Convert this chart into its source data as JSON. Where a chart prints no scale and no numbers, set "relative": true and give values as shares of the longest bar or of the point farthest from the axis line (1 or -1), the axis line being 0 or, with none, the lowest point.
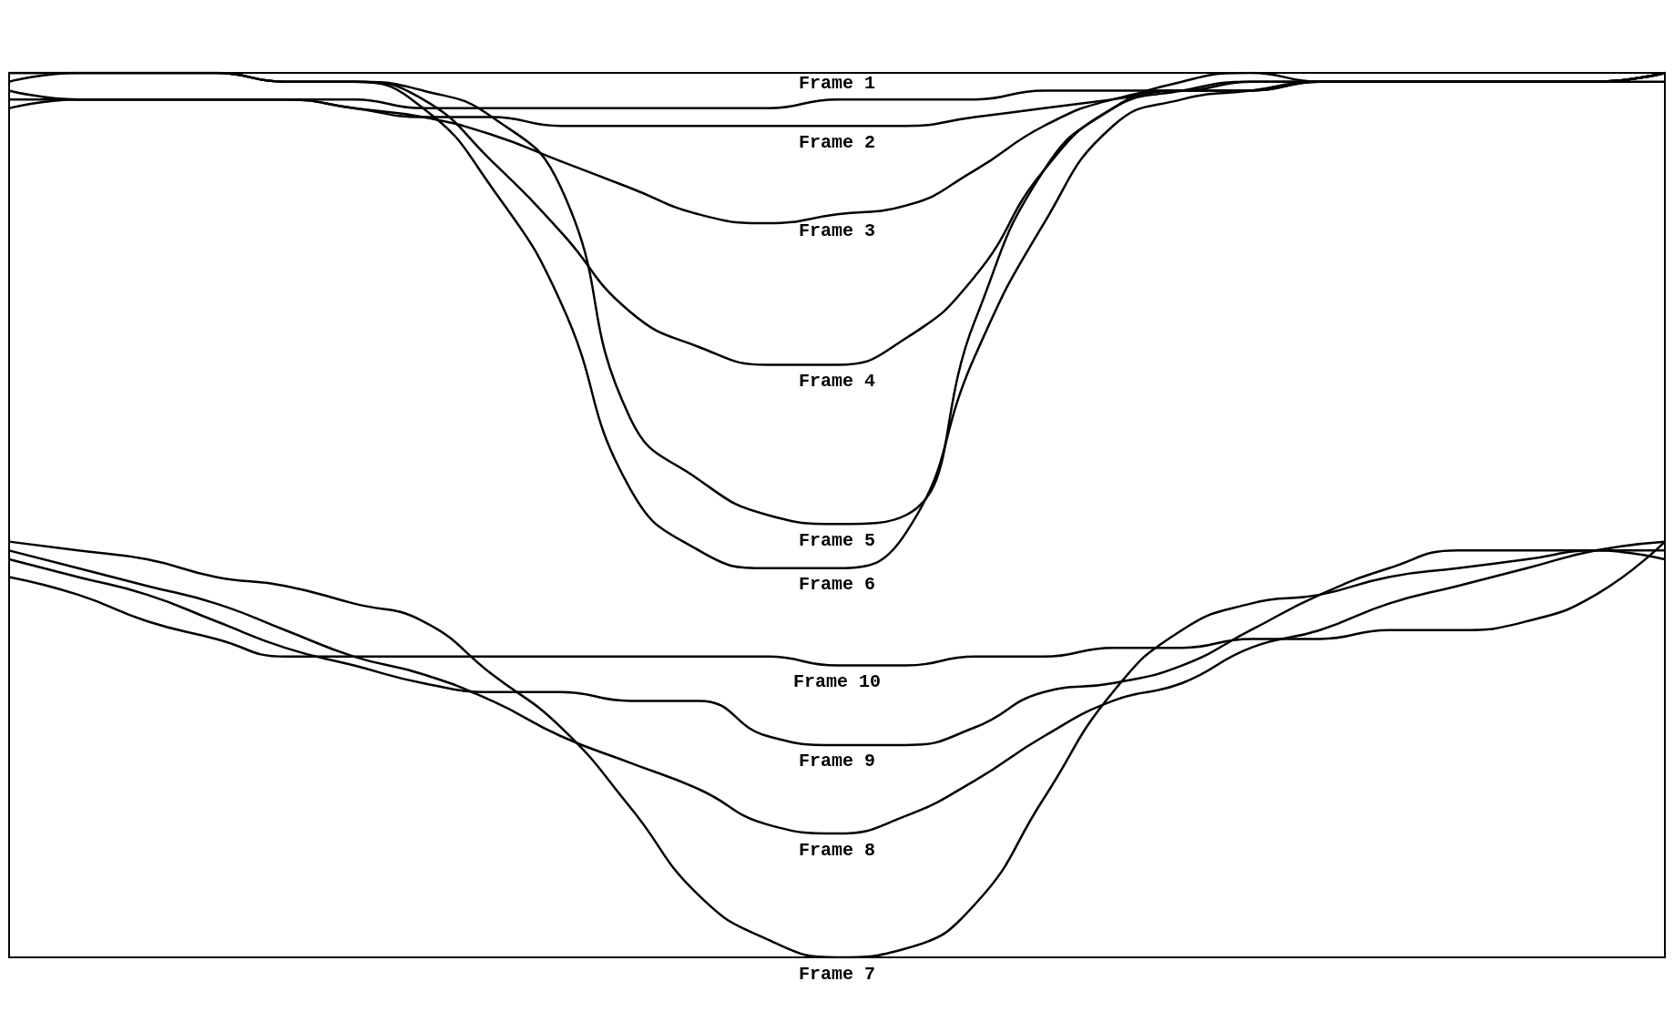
{
  "chart_data": {
    "type": "line",
    "relative": true,
    "categories": [
      null,
      null,
      null,
      null,
      null,
      null,
      null,
      null,
      null,
      null,
      null,
      null,
      null,
      null,
      null,
      null,
      null,
      null,
      null,
      null,
      null,
      null,
      null,
      null,
      null
    ],
    "series": [
      {
        "name": "Frame 1",
        "color": "#000000",
        "values": [
          0.98,
          0.97,
          0.97,
          0.97,
          0.97,
          0.97,
          0.96,
          0.96,
          0.96,
          0.96,
          0.96,
          0.96,
          0.97,
          0.97,
          0.97,
          0.98,
          0.98,
          0.98,
          0.99,
          0.99,
          0.99,
          0.99,
          0.99,
          0.99,
          1.0
        ]
      },
      {
        "name": "Frame 2",
        "color": "#000000",
        "values": [
          0.97,
          0.97,
          0.97,
          0.97,
          0.97,
          0.96,
          0.95,
          0.95,
          0.94,
          0.94,
          0.94,
          0.94,
          0.94,
          0.94,
          0.95,
          0.96,
          0.97,
          0.98,
          0.98,
          0.99,
          0.99,
          0.99,
          0.99,
          0.99,
          1.0
        ]
      },
      {
        "name": "Frame 3",
        "color": "#000000",
        "values": [
          0.96,
          0.97,
          0.97,
          0.97,
          0.97,
          0.96,
          0.95,
          0.93,
          0.9,
          0.87,
          0.84,
          0.83,
          0.84,
          0.85,
          0.89,
          0.94,
          0.97,
          0.98,
          0.98,
          0.99,
          0.99,
          0.99,
          0.99,
          0.99,
          1.0
        ]
      },
      {
        "name": "Frame 4",
        "color": "#000000",
        "values": [
          1.0,
          1.0,
          1.0,
          1.0,
          0.99,
          0.99,
          0.97,
          0.9,
          0.82,
          0.73,
          0.69,
          0.67,
          0.67,
          0.7,
          0.77,
          0.89,
          0.96,
          0.98,
          0.99,
          0.99,
          0.99,
          0.99,
          0.99,
          0.99,
          1.0
        ]
      },
      {
        "name": "Frame 5",
        "color": "#000000",
        "values": [
          0.99,
          1.0,
          1.0,
          1.0,
          0.99,
          0.99,
          0.98,
          0.95,
          0.87,
          0.61,
          0.54,
          0.5,
          0.49,
          0.5,
          0.72,
          0.89,
          0.96,
          0.99,
          1.0,
          0.99,
          0.99,
          0.99,
          0.99,
          0.99,
          1.0
        ]
      },
      {
        "name": "Frame 6",
        "color": "#000000",
        "values": [
          1.0,
          1.0,
          1.0,
          1.0,
          0.99,
          0.99,
          0.96,
          0.87,
          0.74,
          0.53,
          0.46,
          0.44,
          0.44,
          0.48,
          0.68,
          0.83,
          0.94,
          0.97,
          0.98,
          0.99,
          0.99,
          0.99,
          0.99,
          0.99,
          0.99
        ]
      },
      {
        "name": "Frame 7",
        "color": "#000000",
        "values": [
          0.47,
          0.46,
          0.45,
          0.43,
          0.42,
          0.4,
          0.38,
          0.32,
          0.26,
          0.17,
          0.07,
          0.02,
          0.0,
          0.01,
          0.06,
          0.18,
          0.3,
          0.37,
          0.4,
          0.41,
          0.43,
          0.44,
          0.45,
          0.46,
          0.46
        ]
      },
      {
        "name": "Frame 8",
        "color": "#000000",
        "values": [
          0.46,
          0.44,
          0.42,
          0.4,
          0.37,
          0.34,
          0.32,
          0.29,
          0.25,
          0.22,
          0.19,
          0.15,
          0.14,
          0.16,
          0.2,
          0.25,
          0.29,
          0.31,
          0.35,
          0.37,
          0.4,
          0.42,
          0.44,
          0.46,
          0.47
        ]
      },
      {
        "name": "Frame 9",
        "color": "#000000",
        "values": [
          0.45,
          0.43,
          0.41,
          0.38,
          0.35,
          0.33,
          0.31,
          0.3,
          0.3,
          0.29,
          0.29,
          0.25,
          0.24,
          0.24,
          0.26,
          0.3,
          0.31,
          0.33,
          0.37,
          0.41,
          0.44,
          0.46,
          0.46,
          0.46,
          0.45
        ]
      },
      {
        "name": "Frame 10",
        "color": "#000000",
        "values": [
          0.43,
          0.41,
          0.38,
          0.36,
          0.34,
          0.34,
          0.34,
          0.34,
          0.34,
          0.34,
          0.34,
          0.34,
          0.33,
          0.33,
          0.34,
          0.34,
          0.35,
          0.35,
          0.36,
          0.36,
          0.37,
          0.37,
          0.38,
          0.41,
          0.47
        ]
      }
    ]
  }
}
